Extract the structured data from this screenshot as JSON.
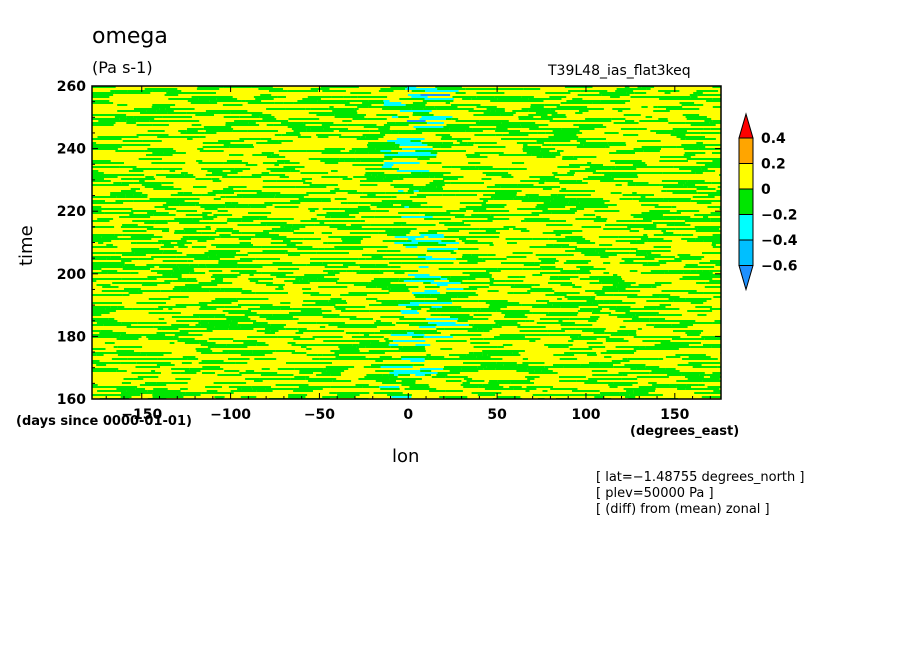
{
  "chart_data": {
    "type": "heatmap",
    "title": "omega",
    "units": "(Pa s-1)",
    "run_label": "T39L48_ias_flat3keq",
    "xlabel": "lon",
    "ylabel": "time",
    "x_units": "(degrees_east)",
    "y_units": "(days since 0000-01-01)",
    "xlim": [
      -178,
      176
    ],
    "ylim": [
      160,
      260
    ],
    "x_ticks": [
      -150,
      -100,
      -50,
      0,
      50,
      100,
      150
    ],
    "y_ticks": [
      160,
      180,
      200,
      220,
      240,
      260
    ],
    "colorbar": {
      "levels": [
        -0.6,
        -0.4,
        -0.2,
        0,
        0.2,
        0.4
      ],
      "tick_labels": [
        "0.4",
        "0.2",
        "0",
        "−0.2",
        "−0.4",
        "−0.6"
      ],
      "colors": [
        "#1e90ff",
        "#00bfff",
        "#00ffff",
        "#00e600",
        "#ffff00",
        "#ffa500",
        "#ff0000"
      ]
    },
    "dominant_colors": {
      "positive_band": "#ffff00",
      "negative_band": "#00e600",
      "strong_negative": "#00ffff",
      "very_strong_negative": "#1e90ff"
    },
    "notes": [
      "[ lat=−1.48755 degrees_north ]",
      "[ plev=50000 Pa ]",
      "[ (diff) from (mean) zonal ]"
    ]
  },
  "colors": {
    "frame": "#000000",
    "background": "#ffffff"
  }
}
